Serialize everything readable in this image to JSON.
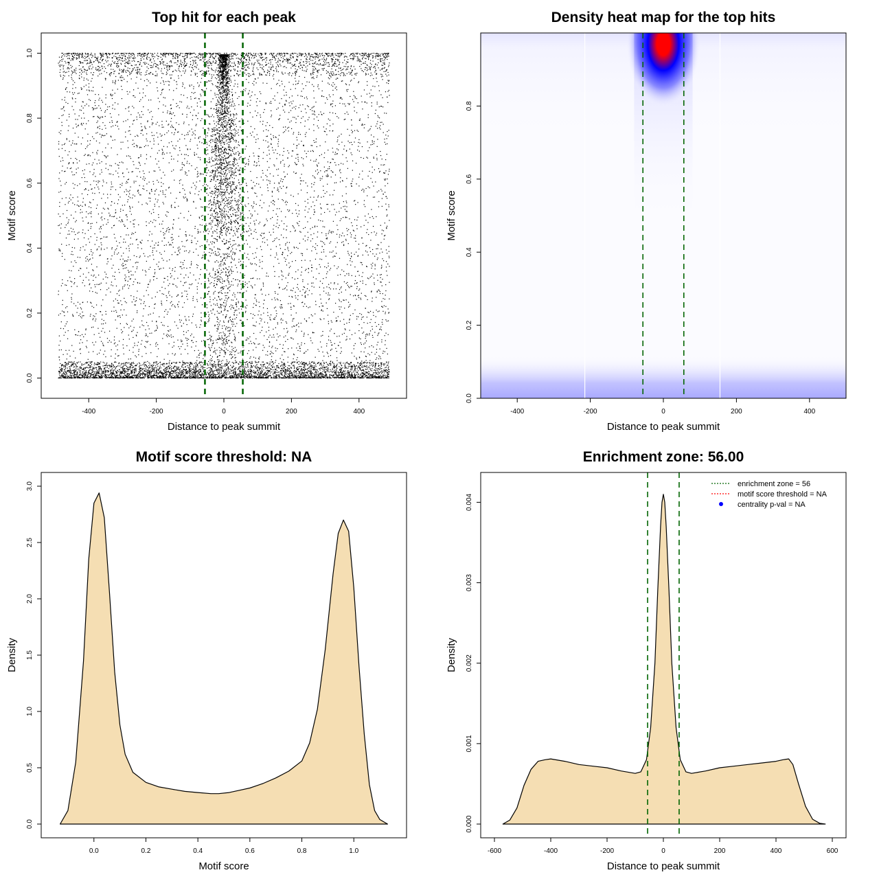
{
  "chart_data": [
    {
      "type": "scatter",
      "title": "Top hit for each peak",
      "xlabel": "Distance to peak summit",
      "ylabel": "Motif score",
      "xlim": [
        -500,
        500
      ],
      "ylim": [
        -0.02,
        1.02
      ],
      "xticks": [
        -400,
        -200,
        0,
        200,
        400
      ],
      "yticks": [
        0.0,
        0.2,
        0.4,
        0.6,
        0.8,
        1.0
      ],
      "xtick_labels": [
        "-400",
        "-200",
        "0",
        "200",
        "400"
      ],
      "ytick_labels": [
        "0.0",
        "0.2",
        "0.4",
        "0.6",
        "0.8",
        "1.0"
      ],
      "vlines": [
        -56,
        56
      ],
      "vline_color": "#006400",
      "point_color": "#000000",
      "grid": false,
      "distribution": "uniform background over x in [-500, 500]; dense band at motif score 0.00-0.05; dense band at 0.93-1.00; concentrated cluster near x = 0 at high scores"
    },
    {
      "type": "heatmap",
      "title": "Density heat map for the top hits",
      "xlabel": "Distance to peak summit",
      "ylabel": "Motif score",
      "xlim": [
        -500,
        500
      ],
      "ylim": [
        0,
        1
      ],
      "xticks": [
        -400,
        -200,
        0,
        200,
        400
      ],
      "yticks": [
        0.0,
        0.2,
        0.4,
        0.6,
        0.8
      ],
      "xtick_labels": [
        "-400",
        "-200",
        "0",
        "200",
        "400"
      ],
      "ytick_labels": [
        "0.0",
        "0.2",
        "0.4",
        "0.6",
        "0.8"
      ],
      "vlines": [
        -56,
        56
      ],
      "vline_color": "#006400",
      "colorscale": [
        "#ffffff",
        "#0000ff",
        "#ff0000"
      ],
      "hotspot": {
        "x": 0,
        "y": 0.97,
        "level": "max"
      },
      "low_band": {
        "y": 0.03,
        "level": "light"
      },
      "grid": false
    },
    {
      "type": "area",
      "title": "Motif score threshold: NA",
      "xlabel": "Motif score",
      "ylabel": "Density",
      "xlim": [
        -0.15,
        1.15
      ],
      "ylim": [
        0,
        3.0
      ],
      "xticks": [
        0.0,
        0.2,
        0.4,
        0.6,
        0.8,
        1.0
      ],
      "yticks": [
        0.0,
        0.5,
        1.0,
        1.5,
        2.0,
        2.5,
        3.0
      ],
      "xtick_labels": [
        "0.0",
        "0.2",
        "0.4",
        "0.6",
        "0.8",
        "1.0"
      ],
      "ytick_labels": [
        "0.0",
        "0.5",
        "1.0",
        "1.5",
        "2.0",
        "2.5",
        "3.0"
      ],
      "fill_color": "#f5deb3",
      "x": [
        -0.13,
        -0.1,
        -0.07,
        -0.04,
        -0.02,
        0.0,
        0.02,
        0.04,
        0.06,
        0.08,
        0.1,
        0.12,
        0.15,
        0.2,
        0.25,
        0.3,
        0.35,
        0.4,
        0.45,
        0.48,
        0.52,
        0.56,
        0.6,
        0.65,
        0.7,
        0.75,
        0.8,
        0.83,
        0.86,
        0.89,
        0.92,
        0.94,
        0.96,
        0.98,
        1.0,
        1.02,
        1.04,
        1.06,
        1.08,
        1.1,
        1.13
      ],
      "y": [
        0.0,
        0.12,
        0.55,
        1.45,
        2.35,
        2.85,
        2.94,
        2.72,
        2.05,
        1.35,
        0.88,
        0.62,
        0.46,
        0.37,
        0.33,
        0.31,
        0.29,
        0.28,
        0.27,
        0.27,
        0.28,
        0.3,
        0.32,
        0.36,
        0.41,
        0.47,
        0.56,
        0.72,
        1.02,
        1.55,
        2.22,
        2.58,
        2.7,
        2.6,
        2.1,
        1.4,
        0.8,
        0.35,
        0.12,
        0.04,
        0.0
      ],
      "grid": false
    },
    {
      "type": "area",
      "title": "Enrichment zone: 56.00",
      "xlabel": "Distance to peak summit",
      "ylabel": "Density",
      "xlim": [
        -600,
        600
      ],
      "ylim": [
        0,
        0.0042
      ],
      "xticks": [
        -600,
        -400,
        -200,
        0,
        200,
        400,
        600
      ],
      "yticks": [
        0.0,
        0.001,
        0.002,
        0.003,
        0.004
      ],
      "xtick_labels": [
        "-600",
        "-400",
        "-200",
        "0",
        "200",
        "400",
        "600"
      ],
      "ytick_labels": [
        "0.000",
        "0.001",
        "0.002",
        "0.003",
        "0.004"
      ],
      "vlines": [
        -56,
        56
      ],
      "vline_color": "#006400",
      "fill_color": "#f5deb3",
      "x": [
        -570,
        -545,
        -520,
        -495,
        -470,
        -445,
        -420,
        -400,
        -350,
        -300,
        -250,
        -200,
        -150,
        -100,
        -80,
        -60,
        -45,
        -30,
        -20,
        -10,
        -5,
        0,
        5,
        10,
        20,
        30,
        45,
        60,
        80,
        100,
        150,
        200,
        250,
        300,
        350,
        400,
        425,
        445,
        460,
        480,
        505,
        530,
        555,
        575
      ],
      "y": [
        0.0,
        5e-05,
        0.0002,
        0.00048,
        0.00068,
        0.00078,
        0.0008,
        0.00081,
        0.00078,
        0.00074,
        0.00072,
        0.0007,
        0.00066,
        0.00063,
        0.00065,
        0.0008,
        0.0012,
        0.002,
        0.0029,
        0.0037,
        0.004,
        0.0041,
        0.004,
        0.0037,
        0.0029,
        0.002,
        0.0012,
        0.0008,
        0.00065,
        0.00063,
        0.00066,
        0.0007,
        0.00072,
        0.00074,
        0.00076,
        0.00078,
        0.0008,
        0.00081,
        0.00074,
        0.0005,
        0.00022,
        6e-05,
        1e-05,
        0.0
      ],
      "legend": {
        "placement": "top-right",
        "entries": [
          {
            "label": "enrichment zone = 56",
            "color": "#006400",
            "symbol": "dotted-line"
          },
          {
            "label": "motif score threshold = NA",
            "color": "#ff0000",
            "symbol": "dotted-line"
          },
          {
            "label": "centrality p-val = NA",
            "color": "#0000ff",
            "symbol": "point"
          }
        ]
      },
      "grid": false
    }
  ]
}
